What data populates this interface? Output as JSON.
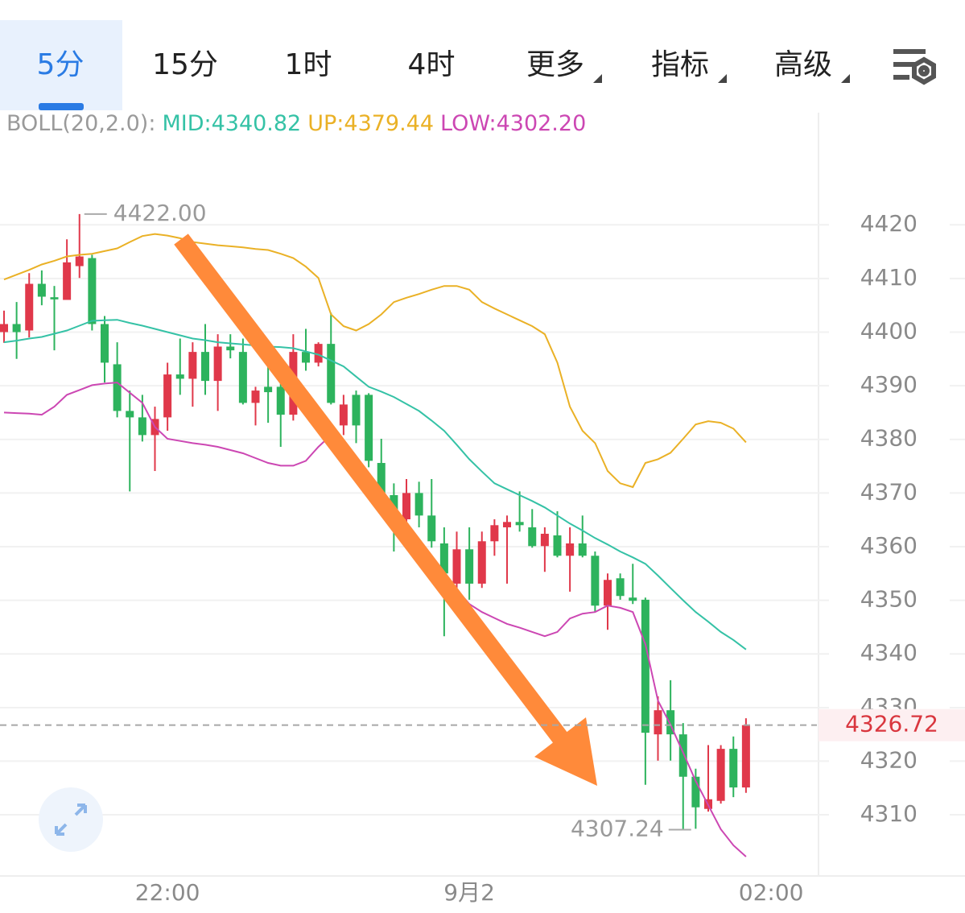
{
  "tabs": [
    "5分",
    "15分",
    "1时",
    "4时",
    "更多",
    "指标",
    "高级"
  ],
  "chart_data": {
    "type": "candlestick",
    "indicator": "BOLL(20,2.0):",
    "up_color": "#e0384a",
    "down_color": "#2db35d",
    "open": [
      4400,
      4401.5,
      4400.3,
      4409,
      4406.5,
      4406,
      4412.3,
      4413.8,
      4401.5,
      4394,
      4385.3,
      4384.1,
      4380.8,
      4384.1,
      4392.1,
      4391.3,
      4396.3,
      4390.9,
      4397.3,
      4396.3,
      4386.8,
      4389.8,
      4389.8,
      4384.6,
      4396.3,
      4394.3,
      4397.8,
      4382.6,
      4388.3,
      4388.3,
      4375.6,
      4369.6,
      4365.1,
      4370,
      4365.8,
      4360.6,
      4353.1,
      4359.5,
      4353.1,
      4361,
      4363.6,
      4364.6,
      4363.6,
      4360.1,
      4362.1,
      4358.3,
      4360.6,
      4358.3,
      4349,
      4354.1,
      4350.5,
      4350.1,
      4325,
      4329.5,
      4325,
      4317.1,
      4311.1,
      4312.6,
      4322.3,
      4315.1
    ],
    "high": [
      4404,
      4405.6,
      4411,
      4411.5,
      4408.6,
      4417.3,
      4422,
      4414.4,
      4403,
      4398.1,
      4389.1,
      4388.3,
      4386.1,
      4394.3,
      4398.8,
      4398.1,
      4401.5,
      4399.6,
      4399.6,
      4398.8,
      4389.8,
      4393.6,
      4391.3,
      4399.6,
      4400.6,
      4398.1,
      4403.6,
      4388.3,
      4389.1,
      4388.6,
      4380.1,
      4371.8,
      4372.6,
      4372.1,
      4372.6,
      4363.6,
      4362.8,
      4363.6,
      4362.8,
      4365.1,
      4365.8,
      4370.3,
      4367,
      4363.6,
      4366.6,
      4363.6,
      4365.8,
      4359.1,
      4355,
      4355,
      4356.8,
      4350.5,
      4332.1,
      4335.1,
      4327.1,
      4318.6,
      4323,
      4323,
      4324.6,
      4328
    ],
    "low": [
      4398,
      4395,
      4399,
      4405,
      4396.6,
      4406,
      4410.1,
      4400.3,
      4390.6,
      4384.1,
      4370.3,
      4379.6,
      4374.1,
      4381.6,
      4388.3,
      4386.1,
      4388.3,
      4385.3,
      4395.1,
      4386.5,
      4382.6,
      4383.1,
      4378.6,
      4383.5,
      4392.8,
      4393.6,
      4386.5,
      4380.8,
      4379.3,
      4374.8,
      4368.8,
      4359.1,
      4364.3,
      4363.6,
      4359.8,
      4343.3,
      4350.8,
      4350.1,
      4352.3,
      4358.3,
      4353.1,
      4362.8,
      4359.8,
      4355.3,
      4358,
      4351.6,
      4358,
      4347.8,
      4344.5,
      4350.1,
      4349.3,
      4315.6,
      4320.1,
      4320.1,
      4307.24,
      4307.4,
      4310.6,
      4312.1,
      4313.3,
      4314.1
    ],
    "close": [
      4401.5,
      4400,
      4409,
      4406.6,
      4406.1,
      4413,
      4414.1,
      4401.5,
      4394.3,
      4385.3,
      4384.1,
      4380.8,
      4383.8,
      4392.1,
      4391.3,
      4396.3,
      4390.9,
      4397.3,
      4396.6,
      4386.8,
      4389.1,
      4388.8,
      4384.6,
      4396.3,
      4394.3,
      4397.8,
      4386.8,
      4386.5,
      4382.6,
      4376,
      4370,
      4365.8,
      4370,
      4365.8,
      4361,
      4355,
      4359.5,
      4353.1,
      4361,
      4364,
      4364.6,
      4364,
      4360.1,
      4362.4,
      4358.3,
      4360.6,
      4358.3,
      4349,
      4353.8,
      4350.8,
      4349.9,
      4325.3,
      4329.5,
      4325,
      4317.1,
      4311.4,
      4312.9,
      4322.3,
      4315.1,
      4326.72
    ],
    "overlays": [
      {
        "label": "MID:4340.82",
        "color": "#35c2a6",
        "values": [
          4398.1,
          4398.4,
          4398.8,
          4399.1,
          4399.7,
          4400.3,
          4401.2,
          4402.1,
          4402.2,
          4402.3,
          4401.7,
          4401.2,
          4400.6,
          4400,
          4399.4,
          4398.8,
          4398.5,
          4398.1,
          4397.9,
          4397.7,
          4397.5,
          4397.3,
          4397.2,
          4397,
          4396.4,
          4395.8,
          4394.7,
          4393.6,
          4391.7,
          4389.8,
          4388.9,
          4387.9,
          4386.6,
          4385.3,
          4383.5,
          4381.6,
          4379,
          4376.3,
          4374,
          4371.8,
          4370.7,
          4369.6,
          4368.5,
          4367.3,
          4365.8,
          4364.3,
          4363,
          4361.6,
          4360.4,
          4359.1,
          4358,
          4356.8,
          4354.6,
          4352.3,
          4350,
          4347.8,
          4346,
          4344.1,
          4342.6,
          4340.82
        ]
      },
      {
        "label": "UP:4379.44",
        "color": "#eab126",
        "values": [
          4409.8,
          4410.7,
          4411.6,
          4412.6,
          4413.3,
          4414.1,
          4414.4,
          4414.6,
          4415.1,
          4415.6,
          4416.8,
          4417.9,
          4418.3,
          4418,
          4417.5,
          4416.8,
          4416.5,
          4416.2,
          4416,
          4415.8,
          4415.5,
          4415.3,
          4414.6,
          4413.8,
          4412.2,
          4410.1,
          4403.3,
          4401.1,
          4400.3,
          4401.5,
          4403.3,
          4405.6,
          4406.4,
          4407.1,
          4407.9,
          4408.6,
          4408.6,
          4407.9,
          4405.6,
          4404.4,
          4403.3,
          4402.2,
          4401.1,
          4399.6,
          4394.3,
          4386.1,
          4381.6,
          4379.3,
          4374.1,
          4371.8,
          4371.1,
          4375.6,
          4376.3,
          4377.5,
          4380.1,
          4382.8,
          4383.4,
          4383.1,
          4382,
          4379.44
        ]
      },
      {
        "label": "LOW:4302.20",
        "color": "#cc47b3",
        "values": [
          4385,
          4384.9,
          4384.8,
          4384.6,
          4386.1,
          4388.3,
          4389.2,
          4390.1,
          4390.4,
          4390.6,
          4388.7,
          4386.8,
          4382.3,
          4380.1,
          4379.7,
          4379.3,
          4379,
          4378.6,
          4378,
          4377.4,
          4376.5,
          4375.6,
          4375.1,
          4375.1,
          4376,
          4378.6,
          4380.8,
          4377.8,
          4376.3,
          4373.3,
          4370.3,
          4365.8,
          4363.6,
          4360.6,
          4357.6,
          4354.6,
          4352,
          4349.3,
          4347.8,
          4346.7,
          4345.6,
          4344.9,
          4344.1,
          4343.3,
          4344.1,
          4346.6,
          4347.5,
          4347.8,
          4349,
          4348.6,
          4347.8,
          4341.8,
          4331.3,
          4326.8,
          4321.6,
          4316.3,
          4311.8,
          4307.3,
          4304.3,
          4302.2
        ]
      }
    ],
    "xlim": [
      -0.32,
      64.64
    ],
    "xticks": [
      {
        "value": 13,
        "label": "22:00"
      },
      {
        "value": 37,
        "label": "9月2"
      },
      {
        "value": 61,
        "label": "02:00"
      }
    ],
    "ylim": [
      4298.6,
      4440.9
    ],
    "yticks": [
      4310,
      4320,
      4330,
      4340,
      4350,
      4360,
      4370,
      4380,
      4390,
      4400,
      4410,
      4420
    ],
    "grid": true,
    "last_price": 4326.72,
    "max_label": {
      "value": 4422,
      "label": "4422.00"
    },
    "min_label": 4307.24
  }
}
